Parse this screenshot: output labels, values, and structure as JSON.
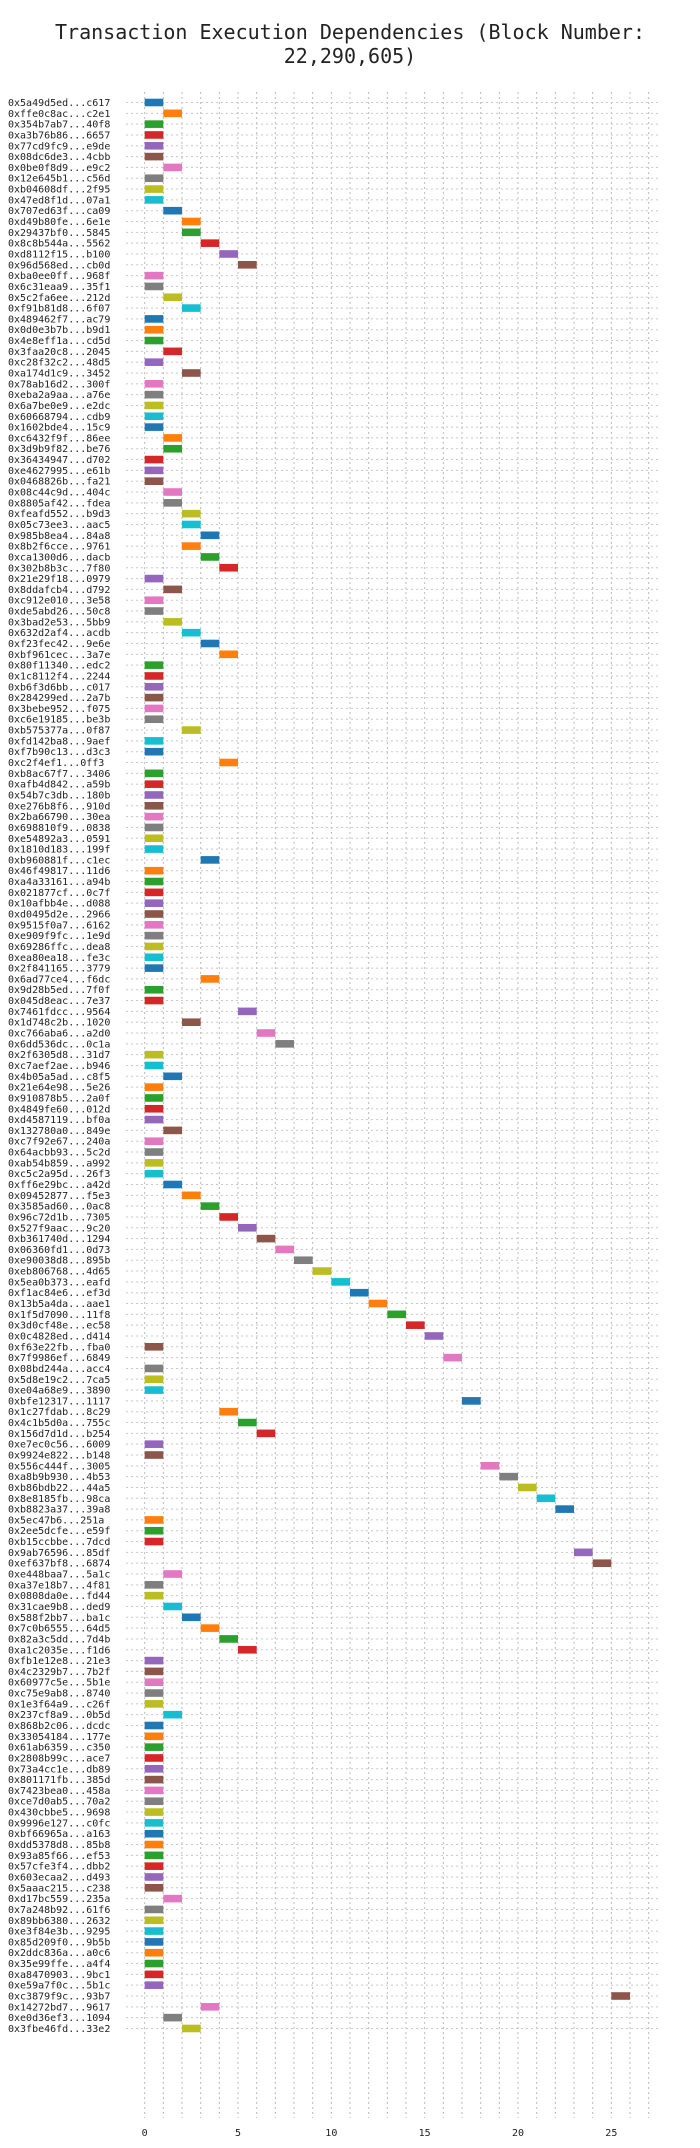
{
  "chart_data": {
    "type": "bar",
    "title": "Transaction Execution Dependencies (Block Number: 22,290,605)",
    "xlabel": "",
    "ylabel": "",
    "xlim": [
      -1,
      27.5
    ],
    "xticks": [
      0,
      5,
      10,
      15,
      20,
      25
    ],
    "grid": true,
    "palette": [
      "#1f77b4",
      "#ff7f0e",
      "#2ca02c",
      "#d62728",
      "#9467bd",
      "#8c564b",
      "#e377c2",
      "#7f7f7f",
      "#bcbd22",
      "#17becf"
    ],
    "transactions": [
      {
        "label": "0x5a49d5ed...c617",
        "start": 0
      },
      {
        "label": "0xffe0c8ac...c2e1",
        "start": 1
      },
      {
        "label": "0x354b7ab7...40f8",
        "start": 0
      },
      {
        "label": "0xa3b76b86...6657",
        "start": 0
      },
      {
        "label": "0x77cd9fc9...e9de",
        "start": 0
      },
      {
        "label": "0x08dc6de3...4cbb",
        "start": 0
      },
      {
        "label": "0x0be0f8d9...e9c2",
        "start": 1
      },
      {
        "label": "0x12e645b1...c56d",
        "start": 0
      },
      {
        "label": "0xb04608df...2f95",
        "start": 0
      },
      {
        "label": "0x47ed8f1d...07a1",
        "start": 0
      },
      {
        "label": "0x707ed63f...ca09",
        "start": 1
      },
      {
        "label": "0xd49b80fe...6e1e",
        "start": 2
      },
      {
        "label": "0x29437bf0...5845",
        "start": 2
      },
      {
        "label": "0x8c8b544a...5562",
        "start": 3
      },
      {
        "label": "0xd8112f15...b100",
        "start": 4
      },
      {
        "label": "0x96d568ed...cb0d",
        "start": 5
      },
      {
        "label": "0xba0ee0ff...968f",
        "start": 0
      },
      {
        "label": "0x6c31eaa9...35f1",
        "start": 0
      },
      {
        "label": "0x5c2fa6ee...212d",
        "start": 1
      },
      {
        "label": "0xf91b81d8...6f07",
        "start": 2
      },
      {
        "label": "0x489462f7...ac79",
        "start": 0
      },
      {
        "label": "0x0d0e3b7b...b9d1",
        "start": 0
      },
      {
        "label": "0x4e8eff1a...cd5d",
        "start": 0
      },
      {
        "label": "0x3faa20c8...2045",
        "start": 1
      },
      {
        "label": "0xc28f32c2...48d5",
        "start": 0
      },
      {
        "label": "0xa174d1c9...3452",
        "start": 2
      },
      {
        "label": "0x78ab16d2...300f",
        "start": 0
      },
      {
        "label": "0xeba2a9aa...a76e",
        "start": 0
      },
      {
        "label": "0x6a7be0e9...e2dc",
        "start": 0
      },
      {
        "label": "0x60668794...cdb9",
        "start": 0
      },
      {
        "label": "0x1602bde4...15c9",
        "start": 0
      },
      {
        "label": "0xc6432f9f...86ee",
        "start": 1
      },
      {
        "label": "0x3d9b9f82...be76",
        "start": 1
      },
      {
        "label": "0x36434947...d702",
        "start": 0
      },
      {
        "label": "0xe4627995...e61b",
        "start": 0
      },
      {
        "label": "0x0468826b...fa21",
        "start": 0
      },
      {
        "label": "0x08c44c9d...404c",
        "start": 1
      },
      {
        "label": "0x8805af42...fdea",
        "start": 1
      },
      {
        "label": "0xfeafd552...b9d3",
        "start": 2
      },
      {
        "label": "0x05c73ee3...aac5",
        "start": 2
      },
      {
        "label": "0x985b8ea4...84a8",
        "start": 3
      },
      {
        "label": "0x8b2f6cce...9761",
        "start": 2
      },
      {
        "label": "0xca1300d6...dacb",
        "start": 3
      },
      {
        "label": "0x302b8b3c...7f80",
        "start": 4
      },
      {
        "label": "0x21e29f18...0979",
        "start": 0
      },
      {
        "label": "0x8ddafcb4...d792",
        "start": 1
      },
      {
        "label": "0xc912e010...3e58",
        "start": 0
      },
      {
        "label": "0xde5abd26...50c8",
        "start": 0
      },
      {
        "label": "0x3bad2e53...5bb9",
        "start": 1
      },
      {
        "label": "0x632d2af4...acdb",
        "start": 2
      },
      {
        "label": "0xf23fec42...9e6e",
        "start": 3
      },
      {
        "label": "0xbf961cec...3a7e",
        "start": 4
      },
      {
        "label": "0x80f11340...edc2",
        "start": 0
      },
      {
        "label": "0x1c8112f4...2244",
        "start": 0
      },
      {
        "label": "0xb6f3d6bb...c017",
        "start": 0
      },
      {
        "label": "0x284299ed...2a7b",
        "start": 0
      },
      {
        "label": "0x3bebe952...f075",
        "start": 0
      },
      {
        "label": "0xc6e19185...be3b",
        "start": 0
      },
      {
        "label": "0xb575377a...0f87",
        "start": 2
      },
      {
        "label": "0xfd142ba8...9aef",
        "start": 0
      },
      {
        "label": "0xf7b90c13...d3c3",
        "start": 0
      },
      {
        "label": "0xc2f4ef1...0ff3",
        "start": 4
      },
      {
        "label": "0xb8ac67f7...3406",
        "start": 0
      },
      {
        "label": "0xafb4d842...a59b",
        "start": 0
      },
      {
        "label": "0x54b7c3db...180b",
        "start": 0
      },
      {
        "label": "0xe276b8f6...910d",
        "start": 0
      },
      {
        "label": "0x2ba66790...30ea",
        "start": 0
      },
      {
        "label": "0x698810f9...0838",
        "start": 0
      },
      {
        "label": "0xe54892a3...0591",
        "start": 0
      },
      {
        "label": "0x1810d183...199f",
        "start": 0
      },
      {
        "label": "0xb960881f...c1ec",
        "start": 3
      },
      {
        "label": "0x46f49817...11d6",
        "start": 0
      },
      {
        "label": "0xa4a33161...a94b",
        "start": 0
      },
      {
        "label": "0x021877cf...0c7f",
        "start": 0
      },
      {
        "label": "0x10afbb4e...d088",
        "start": 0
      },
      {
        "label": "0xd0495d2e...2966",
        "start": 0
      },
      {
        "label": "0x9515f0a7...6162",
        "start": 0
      },
      {
        "label": "0xe909f9fc...1e9d",
        "start": 0
      },
      {
        "label": "0x69286ffc...dea8",
        "start": 0
      },
      {
        "label": "0xea80ea18...fe3c",
        "start": 0
      },
      {
        "label": "0x2f841165...3779",
        "start": 0
      },
      {
        "label": "0x6ad77ce4...f6dc",
        "start": 3
      },
      {
        "label": "0x9d28b5ed...7f0f",
        "start": 0
      },
      {
        "label": "0x045d8eac...7e37",
        "start": 0
      },
      {
        "label": "0x7461fdcc...9564",
        "start": 5
      },
      {
        "label": "0x1d748c2b...1020",
        "start": 2
      },
      {
        "label": "0xc766aba6...a2d0",
        "start": 6
      },
      {
        "label": "0x6dd536dc...0c1a",
        "start": 7
      },
      {
        "label": "0x2f6305d8...31d7",
        "start": 0
      },
      {
        "label": "0xc7aef2ae...b946",
        "start": 0
      },
      {
        "label": "0x4b05a5ad...c8f5",
        "start": 1
      },
      {
        "label": "0x21e64e98...5e26",
        "start": 0
      },
      {
        "label": "0x910878b5...2a0f",
        "start": 0
      },
      {
        "label": "0x4849fe60...012d",
        "start": 0
      },
      {
        "label": "0xd4587119...bf0a",
        "start": 0
      },
      {
        "label": "0x132780a0...849e",
        "start": 1
      },
      {
        "label": "0xc7f92e67...240a",
        "start": 0
      },
      {
        "label": "0x64acbb93...5c2d",
        "start": 0
      },
      {
        "label": "0xab54b859...a992",
        "start": 0
      },
      {
        "label": "0xc5c2a95d...26f3",
        "start": 0
      },
      {
        "label": "0xff6e29bc...a42d",
        "start": 1
      },
      {
        "label": "0x09452877...f5e3",
        "start": 2
      },
      {
        "label": "0x3585ad60...0ac8",
        "start": 3
      },
      {
        "label": "0x96c72d1b...7305",
        "start": 4
      },
      {
        "label": "0x527f9aac...9c20",
        "start": 5
      },
      {
        "label": "0xb361740d...1294",
        "start": 6
      },
      {
        "label": "0x06360fd1...0d73",
        "start": 7
      },
      {
        "label": "0xe90038d8...895b",
        "start": 8
      },
      {
        "label": "0xeb806768...4d65",
        "start": 9
      },
      {
        "label": "0x5ea0b373...eafd",
        "start": 10
      },
      {
        "label": "0xf1ac84e6...ef3d",
        "start": 11
      },
      {
        "label": "0x13b5a4da...aae1",
        "start": 12
      },
      {
        "label": "0x1f5d7090...11f8",
        "start": 13
      },
      {
        "label": "0x3d0cf48e...ec58",
        "start": 14
      },
      {
        "label": "0x0c4828ed...d414",
        "start": 15
      },
      {
        "label": "0xf63e22fb...fba0",
        "start": 0
      },
      {
        "label": "0x7f9986ef...6849",
        "start": 16
      },
      {
        "label": "0x08bd244a...acc4",
        "start": 0
      },
      {
        "label": "0x5d8e19c2...7ca5",
        "start": 0
      },
      {
        "label": "0xe04a68e9...3890",
        "start": 0
      },
      {
        "label": "0xbfe12317...1117",
        "start": 17
      },
      {
        "label": "0x1c27fdab...8c29",
        "start": 4
      },
      {
        "label": "0x4c1b5d0a...755c",
        "start": 5
      },
      {
        "label": "0x156d7d1d...b254",
        "start": 6
      },
      {
        "label": "0xe7ec0c56...6009",
        "start": 0
      },
      {
        "label": "0x9924e822...b148",
        "start": 0
      },
      {
        "label": "0x556c444f...3005",
        "start": 18
      },
      {
        "label": "0xa8b9b930...4b53",
        "start": 19
      },
      {
        "label": "0xb86bdb22...44a5",
        "start": 20
      },
      {
        "label": "0x8e8185fb...98ca",
        "start": 21
      },
      {
        "label": "0xb8823a37...39a8",
        "start": 22
      },
      {
        "label": "0x5ec47b6...251a",
        "start": 0
      },
      {
        "label": "0x2ee5dcfe...e59f",
        "start": 0
      },
      {
        "label": "0xb15ccbbe...7dcd",
        "start": 0
      },
      {
        "label": "0x9ab76596...85df",
        "start": 23
      },
      {
        "label": "0xef637bf8...6874",
        "start": 24
      },
      {
        "label": "0xe448baa7...5a1c",
        "start": 1
      },
      {
        "label": "0xa37e18b7...4f81",
        "start": 0
      },
      {
        "label": "0x0808da0e...fd44",
        "start": 0
      },
      {
        "label": "0x31cae9b8...ded9",
        "start": 1
      },
      {
        "label": "0x588f2bb7...ba1c",
        "start": 2
      },
      {
        "label": "0x7c0b6555...64d5",
        "start": 3
      },
      {
        "label": "0x82a3c5dd...7d4b",
        "start": 4
      },
      {
        "label": "0xa1c2035e...f1d6",
        "start": 5
      },
      {
        "label": "0xfb1e12e8...21e3",
        "start": 0
      },
      {
        "label": "0x4c2329b7...7b2f",
        "start": 0
      },
      {
        "label": "0x60977c5e...5b1e",
        "start": 0
      },
      {
        "label": "0xc75e9ab8...8740",
        "start": 0
      },
      {
        "label": "0x1e3f64a9...c26f",
        "start": 0
      },
      {
        "label": "0x237cf8a9...0b5d",
        "start": 1
      },
      {
        "label": "0x868b2c06...dcdc",
        "start": 0
      },
      {
        "label": "0x33054184...177e",
        "start": 0
      },
      {
        "label": "0x61ab6359...c350",
        "start": 0
      },
      {
        "label": "0x2808b99c...ace7",
        "start": 0
      },
      {
        "label": "0x73a4cc1e...db89",
        "start": 0
      },
      {
        "label": "0x801171fb...385d",
        "start": 0
      },
      {
        "label": "0x7423bea0...458a",
        "start": 0
      },
      {
        "label": "0xce7d0ab5...70a2",
        "start": 0
      },
      {
        "label": "0x430cbbe5...9698",
        "start": 0
      },
      {
        "label": "0x9996e127...c0fc",
        "start": 0
      },
      {
        "label": "0xbf66965a...a163",
        "start": 0
      },
      {
        "label": "0xdd5378d8...85b8",
        "start": 0
      },
      {
        "label": "0x93a85f66...ef53",
        "start": 0
      },
      {
        "label": "0x57cfe3f4...dbb2",
        "start": 0
      },
      {
        "label": "0x603ecaa2...d493",
        "start": 0
      },
      {
        "label": "0x5aaac215...c238",
        "start": 0
      },
      {
        "label": "0xd17bc559...235a",
        "start": 1
      },
      {
        "label": "0x7a248b92...61f6",
        "start": 0
      },
      {
        "label": "0x89bb6380...2632",
        "start": 0
      },
      {
        "label": "0xe3f84e3b...9295",
        "start": 0
      },
      {
        "label": "0x85d209f0...9b5b",
        "start": 0
      },
      {
        "label": "0x2ddc836a...a0c6",
        "start": 0
      },
      {
        "label": "0x35e99ffe...a4f4",
        "start": 0
      },
      {
        "label": "0xa8470903...9bc1",
        "start": 0
      },
      {
        "label": "0xe59a7f0c...5b1c",
        "start": 0
      },
      {
        "label": "0xc3879f9c...93b7",
        "start": 25
      },
      {
        "label": "0x14272bd7...9617",
        "start": 3
      },
      {
        "label": "0xe0d36ef3...1094",
        "start": 1
      },
      {
        "label": "0x3fbe46fd...33e2",
        "start": 2
      }
    ]
  }
}
